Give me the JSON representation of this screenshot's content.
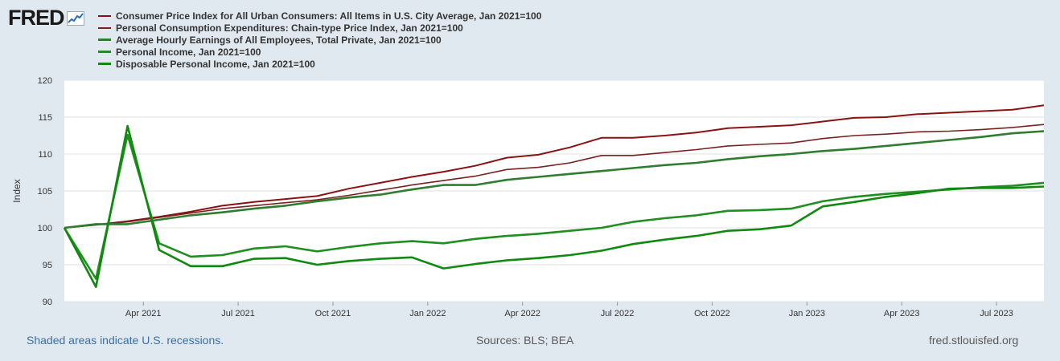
{
  "logo": {
    "text": "FRED"
  },
  "colors": {
    "cpi": "#8b1212",
    "pce": "#7a2020",
    "ahe": "#2f7d2f",
    "pi": "#1f8f1f",
    "dpi": "#0f8a0f"
  },
  "chart_data": {
    "type": "line",
    "ylabel": "Index",
    "ylim": [
      90,
      120
    ],
    "yticks": [
      90,
      95,
      100,
      105,
      110,
      115,
      120
    ],
    "grid": true,
    "x": [
      "2021-01",
      "2021-02",
      "2021-03",
      "2021-04",
      "2021-05",
      "2021-06",
      "2021-07",
      "2021-08",
      "2021-09",
      "2021-10",
      "2021-11",
      "2021-12",
      "2022-01",
      "2022-02",
      "2022-03",
      "2022-04",
      "2022-05",
      "2022-06",
      "2022-07",
      "2022-08",
      "2022-09",
      "2022-10",
      "2022-11",
      "2022-12",
      "2023-01",
      "2023-02",
      "2023-03",
      "2023-04",
      "2023-05",
      "2023-06",
      "2023-07",
      "2023-08"
    ],
    "xticks": [
      {
        "index": 2.5,
        "label": "Apr 2021"
      },
      {
        "index": 5.5,
        "label": "Jul 2021"
      },
      {
        "index": 8.5,
        "label": "Oct 2021"
      },
      {
        "index": 11.5,
        "label": "Jan 2022"
      },
      {
        "index": 14.5,
        "label": "Apr 2022"
      },
      {
        "index": 17.5,
        "label": "Jul 2022"
      },
      {
        "index": 20.5,
        "label": "Oct 2022"
      },
      {
        "index": 23.5,
        "label": "Jan 2023"
      },
      {
        "index": 26.5,
        "label": "Apr 2023"
      },
      {
        "index": 29.5,
        "label": "Jul 2023"
      }
    ],
    "series": [
      {
        "key": "cpi",
        "name": "Consumer Price Index for All Urban Consumers: All Items in U.S. City Average, Jan 2021=100",
        "values": [
          100,
          100.4,
          100.9,
          101.5,
          102.2,
          103.0,
          103.5,
          103.9,
          104.3,
          105.3,
          106.1,
          106.9,
          107.6,
          108.4,
          109.5,
          109.9,
          110.9,
          112.2,
          112.2,
          112.5,
          112.9,
          113.5,
          113.7,
          113.9,
          114.4,
          114.9,
          115.0,
          115.4,
          115.6,
          115.8,
          116.0,
          116.6
        ]
      },
      {
        "key": "pce",
        "name": "Personal Consumption Expenditures: Chain-type Price Index, Jan 2021=100",
        "values": [
          100,
          100.4,
          100.8,
          101.4,
          102.0,
          102.6,
          103.0,
          103.4,
          103.8,
          104.4,
          105.1,
          105.8,
          106.4,
          107.0,
          107.9,
          108.2,
          108.8,
          109.8,
          109.8,
          110.2,
          110.6,
          111.1,
          111.3,
          111.5,
          112.1,
          112.5,
          112.7,
          113.0,
          113.1,
          113.3,
          113.6,
          114.0
        ]
      },
      {
        "key": "ahe",
        "name": "Average Hourly Earnings of All Employees, Total Private, Jan 2021=100",
        "values": [
          100,
          100.5,
          100.5,
          101.1,
          101.7,
          102.1,
          102.6,
          103.0,
          103.6,
          104.1,
          104.5,
          105.2,
          105.8,
          105.8,
          106.5,
          106.9,
          107.3,
          107.7,
          108.1,
          108.5,
          108.8,
          109.3,
          109.7,
          110.0,
          110.4,
          110.7,
          111.1,
          111.5,
          111.9,
          112.3,
          112.8,
          113.1
        ]
      },
      {
        "key": "pi",
        "name": "Personal Income, Jan 2021=100",
        "values": [
          100,
          93.1,
          112.6,
          97.9,
          96.1,
          96.3,
          97.2,
          97.5,
          96.8,
          97.4,
          97.9,
          98.2,
          97.9,
          98.5,
          98.9,
          99.2,
          99.6,
          100.0,
          100.8,
          101.3,
          101.7,
          102.3,
          102.4,
          102.6,
          103.6,
          104.2,
          104.6,
          104.9,
          105.2,
          105.5,
          105.7,
          106.1
        ]
      },
      {
        "key": "dpi",
        "name": "Disposable Personal Income, Jan 2021=100",
        "values": [
          100,
          92.0,
          113.8,
          97.0,
          94.8,
          94.8,
          95.8,
          95.9,
          95.0,
          95.5,
          95.8,
          96.0,
          94.5,
          95.1,
          95.6,
          95.9,
          96.3,
          96.9,
          97.8,
          98.4,
          98.9,
          99.6,
          99.8,
          100.3,
          102.9,
          103.5,
          104.2,
          104.7,
          105.3,
          105.4,
          105.4,
          105.6
        ]
      }
    ]
  },
  "footer": {
    "recessions_note": "Shaded areas indicate U.S. recessions.",
    "sources": "Sources: BLS; BEA",
    "site": "fred.stlouisfed.org"
  }
}
